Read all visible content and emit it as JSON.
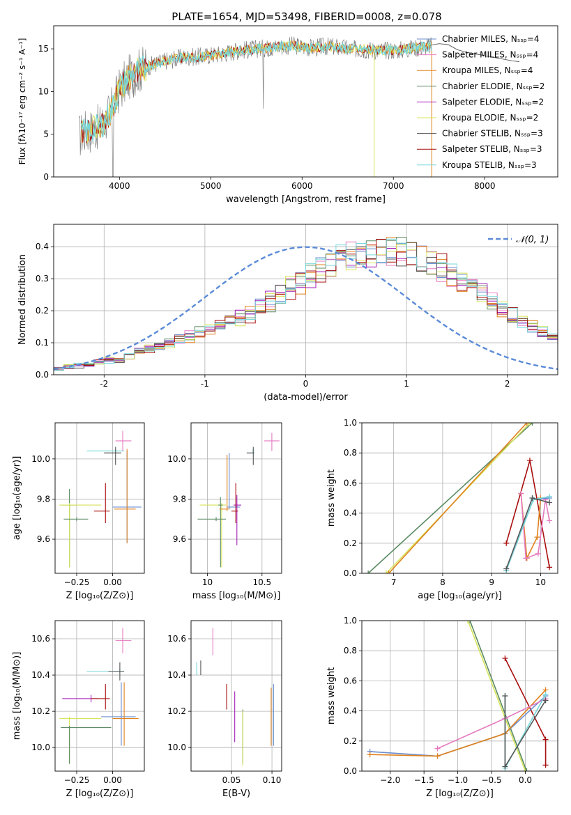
{
  "figure": {
    "title": "PLATE=1654, MJD=53498, FIBERID=0008, z=0.078"
  },
  "colors": {
    "chabrier_miles": "#6a8dcf",
    "salpeter_miles": "#e57ac0",
    "kroupa_miles": "#e0821d",
    "chabrier_elodie": "#5b8a62",
    "salpeter_elodie": "#a51fb8",
    "kroupa_elodie": "#d7e35a",
    "chabrier_stelib": "#555555",
    "salpeter_stelib": "#a80f0f",
    "kroupa_stelib": "#77d7da",
    "normal": "#5b8bd8",
    "observed": "#7f7f7f",
    "grid": "#b0b0b0"
  },
  "chart_data": [
    {
      "id": "spectrum",
      "type": "line",
      "title": "PLATE=1654, MJD=53498, FIBERID=0008, z=0.078",
      "xlabel": "wavelength [Angstrom, rest frame]",
      "ylabel": "Flux [fλ10⁻¹⁷ erg cm⁻² s⁻¹ A⁻¹]",
      "xlim": [
        3280,
        8800
      ],
      "ylim": [
        0,
        17.7
      ],
      "xticks": [
        4000,
        5000,
        6000,
        7000,
        8000
      ],
      "yticks": [
        0,
        5,
        10,
        15
      ],
      "grid": false,
      "legend_position": "right",
      "legend": [
        "Chabrier MILES, Nₛₛₚ=4",
        "Salpeter MILES, Nₛₛₚ=4",
        "Kroupa MILES, Nₛₛₚ=4",
        "Chabrier ELODIE, Nₛₛₚ=2",
        "Salpeter ELODIE, Nₛₛₚ=2",
        "Kroupa ELODIE, Nₛₛₚ=2",
        "Chabrier STELIB, Nₛₛₚ=3",
        "Salpeter STELIB, Nₛₛₚ=3",
        "Kroupa STELIB, Nₛₛₚ=3"
      ],
      "continuum": {
        "x": [
          3560,
          3620,
          3700,
          3800,
          3900,
          4000,
          4100,
          4200,
          4300,
          4500,
          4700,
          4900,
          5100,
          5300,
          5500,
          5700,
          5900,
          6100,
          6300,
          6500,
          6700,
          6900,
          7100,
          7300,
          7400
        ],
        "y": [
          4.8,
          5.3,
          5.5,
          6.0,
          7.5,
          10.2,
          11.6,
          12.4,
          12.9,
          13.6,
          14.0,
          14.1,
          14.4,
          14.8,
          15.0,
          15.2,
          15.4,
          15.1,
          15.3,
          15.0,
          14.9,
          14.8,
          14.9,
          15.2,
          15.3
        ]
      },
      "model_extension": {
        "x": [
          7400,
          7500,
          7600,
          7700,
          7800,
          7900,
          8000,
          8100,
          8200,
          8300,
          8380
        ],
        "y": [
          15.4,
          15.6,
          15.5,
          14.9,
          14.6,
          14.4,
          14.2,
          14.0,
          13.8,
          13.6,
          13.5
        ]
      }
    },
    {
      "id": "residuals",
      "type": "bar",
      "xlabel": "(data-model)/error",
      "ylabel": "Normed distribution",
      "xlim": [
        -2.5,
        2.5
      ],
      "ylim": [
        0,
        0.47
      ],
      "xticks": [
        -2,
        -1,
        0,
        1,
        2
      ],
      "yticks": [
        0.0,
        0.1,
        0.2,
        0.3,
        0.4
      ],
      "grid": true,
      "legend": [
        "𝒩(0, 1)"
      ],
      "legend_position": "top-right",
      "bin_width": 0.1,
      "bins_start": -2.5,
      "histogram_base": [
        0.02,
        0.025,
        0.03,
        0.035,
        0.04,
        0.045,
        0.05,
        0.06,
        0.07,
        0.08,
        0.09,
        0.1,
        0.11,
        0.12,
        0.13,
        0.14,
        0.15,
        0.165,
        0.18,
        0.19,
        0.21,
        0.23,
        0.25,
        0.27,
        0.29,
        0.31,
        0.33,
        0.345,
        0.36,
        0.37,
        0.375,
        0.38,
        0.385,
        0.385,
        0.38,
        0.37,
        0.36,
        0.345,
        0.33,
        0.31,
        0.29,
        0.27,
        0.25,
        0.23,
        0.21,
        0.19,
        0.17,
        0.15,
        0.135,
        0.12,
        0.105,
        0.095,
        0.085,
        0.075,
        0.065,
        0.055,
        0.05,
        0.045,
        0.04,
        0.035
      ]
    },
    {
      "id": "age-vs-Z",
      "type": "scatter",
      "xlabel": "Z [log₁₀(Z/Z⊙)]",
      "ylabel": "age  [log₁₀(age/yr)]",
      "xlim": [
        -0.4,
        0.22
      ],
      "ylim": [
        9.43,
        10.18
      ],
      "xticks": [
        -0.25,
        0.0
      ],
      "xtick_labels": [
        "−0.25",
        "0.00"
      ],
      "yticks": [
        9.6,
        9.8,
        10.0
      ],
      "grid": true,
      "points": [
        {
          "series": "salpeter_miles",
          "x": 0.07,
          "y": 10.09,
          "xerr": [
            0.05,
            0.06
          ],
          "yerr": [
            0.05,
            0.05
          ]
        },
        {
          "series": "kroupa_stelib",
          "x": 0.02,
          "y": 10.04,
          "xerr": [
            0.2,
            0.06
          ],
          "yerr": [
            0.01,
            0.01
          ]
        },
        {
          "series": "chabrier_stelib",
          "x": 0.02,
          "y": 10.03,
          "xerr": [
            0.08,
            0.04
          ],
          "yerr": [
            0.06,
            0.03
          ]
        },
        {
          "series": "chabrier_elodie",
          "x": -0.3,
          "y": 9.77,
          "xerr": [
            0.05,
            0.05
          ],
          "yerr": [
            0.31,
            0.08
          ]
        },
        {
          "series": "kroupa_elodie",
          "x": -0.3,
          "y": 9.77,
          "xerr": [
            0.07,
            0.22
          ],
          "yerr": [
            0.31,
            0.01
          ]
        },
        {
          "series": "chabrier_miles",
          "x": 0.1,
          "y": 9.76,
          "xerr": [
            0.1,
            0.1
          ],
          "yerr": [
            0.18,
            0.28
          ]
        },
        {
          "series": "kroupa_miles",
          "x": 0.1,
          "y": 9.75,
          "xerr": [
            0.09,
            0.06
          ],
          "yerr": [
            0.17,
            0.3
          ]
        },
        {
          "series": "salpeter_stelib",
          "x": -0.05,
          "y": 9.74,
          "xerr": [
            0.08,
            0.03
          ],
          "yerr": [
            0.06,
            0.14
          ]
        },
        {
          "series": "chabrier_elodie",
          "x": -0.25,
          "y": 9.7,
          "xerr": [
            0.09,
            0.08
          ],
          "yerr": [
            0.01,
            0.01
          ]
        }
      ]
    },
    {
      "id": "age-vs-mass",
      "type": "scatter",
      "xlabel": "mass [log₁₀(M/M⊙)]",
      "xlim": [
        9.85,
        10.68
      ],
      "ylim": [
        9.43,
        10.18
      ],
      "xticks": [
        10.0,
        10.5
      ],
      "yticks": [
        9.6,
        9.8,
        10.0
      ],
      "grid": true,
      "points": [
        {
          "series": "salpeter_miles",
          "x": 10.59,
          "y": 10.09,
          "xerr": [
            0.07,
            0.07
          ],
          "yerr": [
            0.05,
            0.04
          ]
        },
        {
          "series": "kroupa_stelib",
          "x": 10.42,
          "y": 10.04,
          "xerr": [
            0.01,
            0.01
          ],
          "yerr": [
            0.01,
            0.01
          ]
        },
        {
          "series": "chabrier_stelib",
          "x": 10.42,
          "y": 10.03,
          "xerr": [
            0.06,
            0.01
          ],
          "yerr": [
            0.06,
            0.03
          ]
        },
        {
          "series": "kroupa_elodie",
          "x": 10.13,
          "y": 9.77,
          "xerr": [
            0.2,
            0.04
          ],
          "yerr": [
            0.31,
            0.01
          ]
        },
        {
          "series": "chabrier_elodie",
          "x": 10.12,
          "y": 9.77,
          "xerr": [
            0.02,
            0.02
          ],
          "yerr": [
            0.31,
            0.04
          ]
        },
        {
          "series": "chabrier_miles",
          "x": 10.2,
          "y": 9.76,
          "xerr": [
            0.02,
            0.1
          ],
          "yerr": [
            0.01,
            0.27
          ]
        },
        {
          "series": "kroupa_miles",
          "x": 10.18,
          "y": 9.75,
          "xerr": [
            0.07,
            0.02
          ],
          "yerr": [
            0.01,
            0.27
          ]
        },
        {
          "series": "salpeter_elodie",
          "x": 10.27,
          "y": 9.77,
          "xerr": [
            0.03,
            0.04
          ],
          "yerr": [
            0.2,
            0.05
          ]
        },
        {
          "series": "salpeter_stelib",
          "x": 10.26,
          "y": 9.74,
          "xerr": [
            0.04,
            0.02
          ],
          "yerr": [
            0.06,
            0.14
          ]
        },
        {
          "series": "chabrier_elodie",
          "x": 10.08,
          "y": 9.7,
          "xerr": [
            0.17,
            0.09
          ],
          "yerr": [
            0.01,
            0.01
          ]
        }
      ]
    },
    {
      "id": "massweight-vs-age",
      "type": "line",
      "xlabel": "age  [log₁₀(age/yr)]",
      "ylabel": "mass weight",
      "xlim": [
        6.35,
        10.35
      ],
      "ylim": [
        0,
        1.0
      ],
      "xticks": [
        7,
        8,
        9,
        10
      ],
      "yticks": [
        0.0,
        0.2,
        0.4,
        0.6,
        0.8,
        1.0
      ],
      "grid": true,
      "series": [
        {
          "series": "chabrier_elodie",
          "x": [
            6.48,
            9.83
          ],
          "y": [
            0.0,
            1.0
          ]
        },
        {
          "series": "kroupa_elodie",
          "x": [
            6.85,
            9.78
          ],
          "y": [
            0.0,
            1.0
          ]
        },
        {
          "series": "kroupa_miles",
          "x": [
            6.9,
            9.72
          ],
          "y": [
            0.0,
            1.0
          ]
        },
        {
          "series": "salpeter_stelib",
          "x": [
            9.3,
            9.78,
            10.18
          ],
          "y": [
            0.2,
            0.75,
            0.04
          ]
        },
        {
          "series": "kroupa_miles",
          "x": [
            9.6,
            9.72,
            9.93,
            10.0
          ],
          "y": [
            0.53,
            0.1,
            0.24,
            0.5
          ]
        },
        {
          "series": "salpeter_miles",
          "x": [
            9.6,
            9.7,
            9.95,
            10.1,
            10.18
          ],
          "y": [
            0.53,
            0.1,
            0.13,
            0.49,
            0.35
          ]
        },
        {
          "series": "chabrier_miles",
          "x": [
            9.3,
            9.85,
            10.18
          ],
          "y": [
            0.02,
            0.49,
            0.5
          ]
        },
        {
          "series": "kroupa_stelib",
          "x": [
            9.3,
            9.85,
            10.18
          ],
          "y": [
            0.02,
            0.49,
            0.51
          ]
        },
        {
          "series": "chabrier_stelib",
          "x": [
            9.3,
            9.83,
            10.18
          ],
          "y": [
            0.03,
            0.5,
            0.47
          ]
        }
      ]
    },
    {
      "id": "mass-vs-Z",
      "type": "scatter",
      "xlabel": "Z [log₁₀(Z/Z⊙)]",
      "ylabel": "mass [log₁₀(M/M⊙)]",
      "xlim": [
        -0.4,
        0.22
      ],
      "ylim": [
        9.87,
        10.7
      ],
      "xticks": [
        -0.25,
        0.0
      ],
      "xtick_labels": [
        "−0.25",
        "0.00"
      ],
      "yticks": [
        10.0,
        10.2,
        10.4,
        10.6
      ],
      "grid": true,
      "points": [
        {
          "series": "salpeter_miles",
          "x": 0.07,
          "y": 10.59,
          "xerr": [
            0.05,
            0.06
          ],
          "yerr": [
            0.07,
            0.07
          ]
        },
        {
          "series": "kroupa_stelib",
          "x": 0.05,
          "y": 10.42,
          "xerr": [
            0.23,
            0.03
          ],
          "yerr": [
            0.02,
            0.02
          ]
        },
        {
          "series": "chabrier_stelib",
          "x": 0.05,
          "y": 10.42,
          "xerr": [
            0.08,
            0.03
          ],
          "yerr": [
            0.05,
            0.05
          ]
        },
        {
          "series": "salpeter_elodie",
          "x": -0.15,
          "y": 10.27,
          "xerr": [
            0.2,
            0.05
          ],
          "yerr": [
            0.02,
            0.02
          ]
        },
        {
          "series": "salpeter_stelib",
          "x": -0.05,
          "y": 10.27,
          "xerr": [
            0.1,
            0.03
          ],
          "yerr": [
            0.06,
            0.08
          ]
        },
        {
          "series": "chabrier_miles",
          "x": 0.06,
          "y": 10.17,
          "xerr": [
            0.14,
            0.1
          ],
          "yerr": [
            0.16,
            0.19
          ]
        },
        {
          "series": "kroupa_miles",
          "x": 0.08,
          "y": 10.16,
          "xerr": [
            0.08,
            0.1
          ],
          "yerr": [
            0.15,
            0.2
          ]
        },
        {
          "series": "kroupa_elodie",
          "x": -0.3,
          "y": 10.16,
          "xerr": [
            0.07,
            0.22
          ],
          "yerr": [
            0.25,
            0.01
          ]
        },
        {
          "series": "chabrier_elodie",
          "x": -0.3,
          "y": 10.11,
          "xerr": [
            0.06,
            0.29
          ],
          "yerr": [
            0.2,
            0.01
          ]
        }
      ]
    },
    {
      "id": "mass-vs-ebv",
      "type": "scatter",
      "xlabel": "E(B-V)",
      "xlim": [
        0.0,
        0.112
      ],
      "ylim": [
        9.87,
        10.7
      ],
      "xticks": [
        0.05,
        0.1
      ],
      "xtick_labels": [
        "0.05",
        "0.10"
      ],
      "yticks": [
        10.0,
        10.2,
        10.4,
        10.6
      ],
      "grid": true,
      "points": [
        {
          "series": "kroupa_stelib",
          "x": 0.007,
          "y": 10.44,
          "yerr": [
            0.04,
            0.03
          ]
        },
        {
          "series": "chabrier_stelib",
          "x": 0.012,
          "y": 10.44,
          "yerr": [
            0.04,
            0.04
          ]
        },
        {
          "series": "salpeter_miles",
          "x": 0.027,
          "y": 10.56,
          "yerr": [
            0.05,
            0.1
          ]
        },
        {
          "series": "salpeter_stelib",
          "x": 0.044,
          "y": 10.27,
          "yerr": [
            0.06,
            0.08
          ]
        },
        {
          "series": "salpeter_elodie",
          "x": 0.054,
          "y": 10.17,
          "yerr": [
            0.14,
            0.14
          ]
        },
        {
          "series": "chabrier_elodie",
          "x": 0.064,
          "y": 10.11,
          "yerr": [
            0.2,
            0.1
          ]
        },
        {
          "series": "kroupa_elodie",
          "x": 0.064,
          "y": 10.1,
          "yerr": [
            0.2,
            0.1
          ]
        },
        {
          "series": "chabrier_miles",
          "x": 0.102,
          "y": 10.18,
          "yerr": [
            0.17,
            0.17
          ]
        },
        {
          "series": "kroupa_miles",
          "x": 0.099,
          "y": 10.17,
          "yerr": [
            0.16,
            0.16
          ]
        }
      ]
    },
    {
      "id": "massweight-vs-Z",
      "type": "line",
      "xlabel": "Z [log₁₀(Z/Z⊙)]",
      "ylabel": "mass weight",
      "xlim": [
        -2.42,
        0.48
      ],
      "ylim": [
        0,
        1.0
      ],
      "xticks": [
        -2.0,
        -1.5,
        -1.0,
        -0.5,
        0.0
      ],
      "xtick_labels": [
        "−2.0",
        "−1.5",
        "−1.0",
        "−0.5",
        "0.0"
      ],
      "yticks": [
        0.0,
        0.2,
        0.4,
        0.6,
        0.8,
        1.0
      ],
      "grid": true,
      "series": [
        {
          "series": "kroupa_elodie",
          "x": [
            -0.85,
            0.0
          ],
          "y": [
            1.0,
            0.0
          ]
        },
        {
          "series": "chabrier_elodie",
          "x": [
            -0.82,
            0.02
          ],
          "y": [
            1.0,
            0.0
          ]
        },
        {
          "series": "salpeter_stelib",
          "x": [
            -0.3,
            0.3,
            0.3
          ],
          "y": [
            0.75,
            0.21,
            0.04
          ]
        },
        {
          "series": "chabrier_miles",
          "x": [
            -2.3,
            -1.3,
            -0.3,
            0.3
          ],
          "y": [
            0.13,
            0.1,
            0.25,
            0.5
          ]
        },
        {
          "series": "kroupa_miles",
          "x": [
            -2.3,
            -1.3,
            -0.3,
            0.3
          ],
          "y": [
            0.11,
            0.1,
            0.25,
            0.54
          ]
        },
        {
          "series": "salpeter_miles",
          "x": [
            -1.3,
            -0.3,
            0.3
          ],
          "y": [
            0.15,
            0.35,
            0.48
          ]
        },
        {
          "series": "kroupa_stelib",
          "x": [
            -0.3,
            -0.3,
            0.3
          ],
          "y": [
            0.5,
            0.02,
            0.51
          ]
        },
        {
          "series": "chabrier_stelib",
          "x": [
            -0.3,
            -0.3,
            0.3
          ],
          "y": [
            0.5,
            0.03,
            0.47
          ]
        }
      ]
    }
  ]
}
